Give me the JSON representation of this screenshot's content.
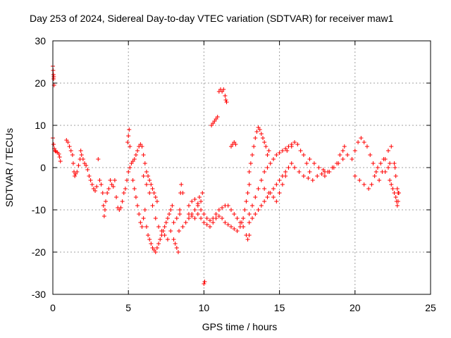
{
  "chart_data": {
    "type": "scatter",
    "title": "Day 253 of 2024, Sidereal Day-to-day VTEC variation (SDTVAR) for receiver maw1",
    "xlabel": "GPS time / hours",
    "ylabel": "SDTVAR / TECUs",
    "xlim": [
      0,
      25
    ],
    "ylim": [
      -30,
      30
    ],
    "x_ticks": [
      0,
      5,
      10,
      15,
      20,
      25
    ],
    "y_ticks": [
      -30,
      -20,
      -10,
      0,
      10,
      20,
      30
    ],
    "x_tick_labels": [
      "0",
      "5",
      "10",
      "15",
      "20",
      "25"
    ],
    "y_tick_labels": [
      "-30",
      "-20",
      "-10",
      "0",
      "10",
      "20",
      "30"
    ],
    "grid": true,
    "marker": "+",
    "marker_color": "#ff0000",
    "series": [
      {
        "name": "SDTVAR",
        "points": [
          [
            0.0,
            24
          ],
          [
            0.02,
            23
          ],
          [
            0.04,
            22
          ],
          [
            0.06,
            21.5
          ],
          [
            0.08,
            19.5
          ],
          [
            0.05,
            21
          ],
          [
            0.0,
            7
          ],
          [
            0.05,
            5.5
          ],
          [
            0.1,
            4.5
          ],
          [
            0.15,
            4
          ],
          [
            0.2,
            3.8
          ],
          [
            0.3,
            3.6
          ],
          [
            0.4,
            3.2
          ],
          [
            0.45,
            2.5
          ],
          [
            0.5,
            1.5
          ],
          [
            0.9,
            6.5
          ],
          [
            1.0,
            6
          ],
          [
            1.1,
            5
          ],
          [
            1.2,
            4
          ],
          [
            1.3,
            3
          ],
          [
            1.35,
            1
          ],
          [
            1.4,
            -1
          ],
          [
            1.45,
            -2
          ],
          [
            1.5,
            -1.5
          ],
          [
            1.6,
            -1
          ],
          [
            1.7,
            0.5
          ],
          [
            1.8,
            2
          ],
          [
            1.85,
            4
          ],
          [
            1.9,
            3
          ],
          [
            2.0,
            2
          ],
          [
            2.1,
            1
          ],
          [
            2.2,
            0.5
          ],
          [
            2.3,
            -0.5
          ],
          [
            2.4,
            -2
          ],
          [
            2.5,
            -3
          ],
          [
            2.6,
            -4
          ],
          [
            2.7,
            -5
          ],
          [
            2.8,
            -5.5
          ],
          [
            2.9,
            -4.5
          ],
          [
            3.0,
            2
          ],
          [
            3.1,
            -3
          ],
          [
            3.2,
            -4
          ],
          [
            3.3,
            -6
          ],
          [
            3.35,
            -9
          ],
          [
            3.4,
            -11.5
          ],
          [
            3.45,
            -10
          ],
          [
            3.5,
            -8
          ],
          [
            3.6,
            -6
          ],
          [
            3.7,
            -5
          ],
          [
            3.8,
            -3
          ],
          [
            3.9,
            -4
          ],
          [
            4.0,
            -4.5
          ],
          [
            4.1,
            -3
          ],
          [
            4.2,
            -7
          ],
          [
            4.3,
            -9.5
          ],
          [
            4.4,
            -10
          ],
          [
            4.5,
            -9.5
          ],
          [
            4.6,
            -8
          ],
          [
            4.7,
            -6
          ],
          [
            4.8,
            -5
          ],
          [
            4.9,
            -3
          ],
          [
            4.95,
            6
          ],
          [
            5.0,
            7.5
          ],
          [
            5.05,
            9
          ],
          [
            5.1,
            5
          ],
          [
            5.0,
            -1
          ],
          [
            5.1,
            0
          ],
          [
            5.2,
            1
          ],
          [
            5.3,
            1.5
          ],
          [
            5.4,
            2
          ],
          [
            5.5,
            3
          ],
          [
            5.6,
            4
          ],
          [
            5.7,
            5
          ],
          [
            5.8,
            5.5
          ],
          [
            5.9,
            5
          ],
          [
            6.0,
            3
          ],
          [
            6.1,
            1
          ],
          [
            6.2,
            -1
          ],
          [
            6.3,
            -2
          ],
          [
            6.4,
            -3
          ],
          [
            6.5,
            -4
          ],
          [
            6.6,
            -5
          ],
          [
            6.7,
            -6
          ],
          [
            6.8,
            -7
          ],
          [
            6.9,
            -8
          ],
          [
            5.3,
            -3
          ],
          [
            5.4,
            -5
          ],
          [
            5.5,
            -7
          ],
          [
            5.6,
            -9
          ],
          [
            5.7,
            -11
          ],
          [
            5.8,
            -13
          ],
          [
            5.9,
            -14
          ],
          [
            6.0,
            -12
          ],
          [
            6.1,
            -10
          ],
          [
            6.2,
            -14
          ],
          [
            6.3,
            -16
          ],
          [
            6.4,
            -17
          ],
          [
            6.5,
            -18
          ],
          [
            6.6,
            -19
          ],
          [
            6.7,
            -19.5
          ],
          [
            6.8,
            -20
          ],
          [
            6.9,
            -19
          ],
          [
            7.0,
            -18
          ],
          [
            7.1,
            -17
          ],
          [
            7.2,
            -16
          ],
          [
            7.3,
            -15
          ],
          [
            7.4,
            -14
          ],
          [
            7.5,
            -13
          ],
          [
            7.6,
            -12
          ],
          [
            7.7,
            -11
          ],
          [
            7.8,
            -10
          ],
          [
            7.9,
            -9
          ],
          [
            8.0,
            -17
          ],
          [
            8.1,
            -18
          ],
          [
            8.2,
            -19
          ],
          [
            8.3,
            -20
          ],
          [
            8.35,
            -15
          ],
          [
            8.4,
            -10
          ],
          [
            8.45,
            -6
          ],
          [
            8.5,
            -4
          ],
          [
            8.6,
            -6
          ],
          [
            6.0,
            -2
          ],
          [
            6.2,
            -4
          ],
          [
            6.4,
            -6
          ],
          [
            6.6,
            -9
          ],
          [
            6.8,
            -12
          ],
          [
            7.0,
            -14
          ],
          [
            7.2,
            -15
          ],
          [
            7.4,
            -16
          ],
          [
            7.6,
            -17
          ],
          [
            7.8,
            -15
          ],
          [
            8.0,
            -13
          ],
          [
            8.2,
            -12
          ],
          [
            8.4,
            -11
          ],
          [
            8.6,
            -14
          ],
          [
            8.8,
            -13
          ],
          [
            9.0,
            -12
          ],
          [
            9.2,
            -11
          ],
          [
            9.4,
            -10
          ],
          [
            9.6,
            -9
          ],
          [
            9.8,
            -8
          ],
          [
            9.9,
            -6
          ],
          [
            9.7,
            -7
          ],
          [
            9.0,
            -9
          ],
          [
            9.2,
            -8
          ],
          [
            9.4,
            -7.5
          ],
          [
            9.6,
            -8.5
          ],
          [
            9.8,
            -10
          ],
          [
            10.0,
            -11
          ],
          [
            10.2,
            -12
          ],
          [
            10.4,
            -12.5
          ],
          [
            10.6,
            -12
          ],
          [
            10.8,
            -11
          ],
          [
            11.0,
            -10
          ],
          [
            11.2,
            -9.5
          ],
          [
            11.4,
            -9
          ],
          [
            11.6,
            -9
          ],
          [
            11.8,
            -10
          ],
          [
            9.0,
            -11
          ],
          [
            9.2,
            -11.5
          ],
          [
            9.4,
            -12
          ],
          [
            9.6,
            -11
          ],
          [
            9.8,
            -12
          ],
          [
            10.0,
            -13
          ],
          [
            10.2,
            -13.5
          ],
          [
            10.4,
            -14
          ],
          [
            10.6,
            -13
          ],
          [
            10.8,
            -12
          ],
          [
            11.0,
            -11.5
          ],
          [
            11.2,
            -12
          ],
          [
            11.4,
            -13
          ],
          [
            11.6,
            -13.5
          ],
          [
            11.8,
            -14
          ],
          [
            12.0,
            -14.5
          ],
          [
            12.2,
            -15
          ],
          [
            12.4,
            -14
          ],
          [
            12.5,
            -13
          ],
          [
            12.6,
            -12
          ],
          [
            12.7,
            -10
          ],
          [
            12.8,
            -8
          ],
          [
            12.9,
            -6
          ],
          [
            13.0,
            -4
          ],
          [
            10.0,
            -27.5
          ],
          [
            10.05,
            -27
          ],
          [
            10.5,
            10
          ],
          [
            10.6,
            10.5
          ],
          [
            10.7,
            11
          ],
          [
            10.8,
            11.5
          ],
          [
            10.9,
            12
          ],
          [
            11.0,
            18
          ],
          [
            11.1,
            18.5
          ],
          [
            11.2,
            18
          ],
          [
            11.3,
            18.5
          ],
          [
            11.4,
            17
          ],
          [
            11.45,
            16
          ],
          [
            11.5,
            15.5
          ],
          [
            11.8,
            5
          ],
          [
            11.9,
            5.5
          ],
          [
            12.0,
            6
          ],
          [
            12.1,
            5.5
          ],
          [
            12.0,
            -11
          ],
          [
            12.2,
            -12
          ],
          [
            12.4,
            -13
          ],
          [
            12.6,
            -14
          ],
          [
            12.8,
            -16
          ],
          [
            12.9,
            -17
          ],
          [
            13.0,
            -16
          ],
          [
            13.0,
            -1
          ],
          [
            13.1,
            1
          ],
          [
            13.2,
            3
          ],
          [
            13.3,
            5
          ],
          [
            13.4,
            7
          ],
          [
            13.5,
            8.5
          ],
          [
            13.6,
            9.5
          ],
          [
            13.7,
            9
          ],
          [
            13.8,
            8
          ],
          [
            13.9,
            7
          ],
          [
            14.0,
            6
          ],
          [
            14.1,
            5
          ],
          [
            14.2,
            3
          ],
          [
            14.3,
            4
          ],
          [
            13.0,
            -11
          ],
          [
            13.2,
            -9
          ],
          [
            13.4,
            -7
          ],
          [
            13.6,
            -5
          ],
          [
            13.8,
            -3
          ],
          [
            14.0,
            -1
          ],
          [
            14.2,
            0
          ],
          [
            14.4,
            1
          ],
          [
            14.6,
            2
          ],
          [
            14.8,
            3
          ],
          [
            15.0,
            3.5
          ],
          [
            15.2,
            4
          ],
          [
            15.4,
            4.5
          ],
          [
            15.6,
            5
          ],
          [
            15.8,
            5.5
          ],
          [
            13.0,
            -13
          ],
          [
            13.2,
            -12
          ],
          [
            13.4,
            -11
          ],
          [
            13.6,
            -10
          ],
          [
            13.8,
            -9
          ],
          [
            14.0,
            -8
          ],
          [
            14.2,
            -7
          ],
          [
            14.4,
            -6
          ],
          [
            14.6,
            -5
          ],
          [
            14.8,
            -4
          ],
          [
            15.0,
            -3
          ],
          [
            15.2,
            -2
          ],
          [
            15.4,
            -1
          ],
          [
            15.6,
            0
          ],
          [
            15.8,
            1
          ],
          [
            14.0,
            -5
          ],
          [
            14.3,
            -6
          ],
          [
            14.6,
            -7
          ],
          [
            14.8,
            -8
          ],
          [
            15.0,
            -6
          ],
          [
            15.2,
            -4
          ],
          [
            15.4,
            -2
          ],
          [
            15.6,
            0
          ],
          [
            15.5,
            4
          ],
          [
            15.8,
            5
          ],
          [
            16.0,
            6
          ],
          [
            16.2,
            5.5
          ],
          [
            16.4,
            4
          ],
          [
            16.6,
            3
          ],
          [
            16.8,
            1
          ],
          [
            17.0,
            -1
          ],
          [
            16.0,
            0
          ],
          [
            16.3,
            -1
          ],
          [
            16.6,
            -2
          ],
          [
            16.9,
            -2.5
          ],
          [
            17.2,
            -3
          ],
          [
            17.5,
            -2
          ],
          [
            17.8,
            -1.5
          ],
          [
            18.0,
            -1
          ],
          [
            17.0,
            2
          ],
          [
            17.3,
            1
          ],
          [
            17.6,
            0
          ],
          [
            17.9,
            -0.5
          ],
          [
            18.2,
            -1
          ],
          [
            18.5,
            0
          ],
          [
            18.8,
            1
          ],
          [
            19.0,
            3
          ],
          [
            19.2,
            4
          ],
          [
            19.3,
            5
          ],
          [
            18.0,
            -2
          ],
          [
            18.3,
            -1
          ],
          [
            18.6,
            0
          ],
          [
            18.9,
            1
          ],
          [
            19.2,
            2
          ],
          [
            19.5,
            3
          ],
          [
            19.8,
            2
          ],
          [
            20.0,
            4
          ],
          [
            20.2,
            6
          ],
          [
            20.4,
            7
          ],
          [
            20.6,
            6
          ],
          [
            20.8,
            5
          ],
          [
            21.0,
            3
          ],
          [
            21.2,
            1
          ],
          [
            21.4,
            -1
          ],
          [
            21.6,
            -3
          ],
          [
            21.8,
            -1
          ],
          [
            22.0,
            2
          ],
          [
            22.2,
            4
          ],
          [
            22.4,
            5
          ],
          [
            20.0,
            -2
          ],
          [
            20.3,
            -3
          ],
          [
            20.6,
            -4
          ],
          [
            20.9,
            -5
          ],
          [
            21.1,
            -4
          ],
          [
            21.3,
            -2
          ],
          [
            21.5,
            0
          ],
          [
            21.7,
            1
          ],
          [
            21.9,
            2
          ],
          [
            22.0,
            -1
          ],
          [
            22.2,
            0
          ],
          [
            22.3,
            1
          ],
          [
            22.3,
            -3
          ],
          [
            22.4,
            -4
          ],
          [
            22.5,
            -5
          ],
          [
            22.6,
            -6
          ],
          [
            22.7,
            -7
          ],
          [
            22.75,
            -8
          ],
          [
            22.8,
            -9
          ],
          [
            22.85,
            -8
          ],
          [
            22.9,
            -6
          ],
          [
            22.6,
            1
          ],
          [
            22.65,
            0
          ],
          [
            22.7,
            -2
          ],
          [
            22.8,
            -5
          ],
          [
            22.85,
            -6
          ]
        ]
      }
    ]
  }
}
